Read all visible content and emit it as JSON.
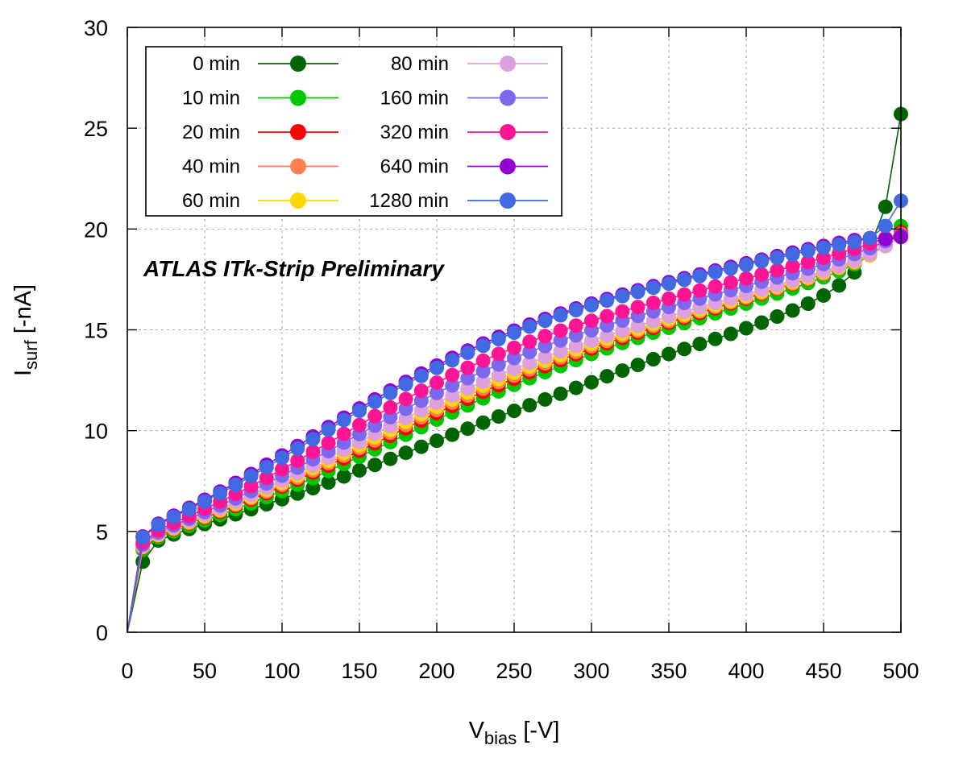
{
  "chart_data": {
    "type": "line",
    "title": "",
    "xlabel": {
      "main": "V",
      "sub": "bias",
      "unit": " [-V]"
    },
    "ylabel": {
      "main": "I",
      "sub": "surf",
      "unit": " [-nA]"
    },
    "xlim": [
      0,
      500
    ],
    "ylim": [
      0,
      30
    ],
    "xticks": [
      "0",
      "50",
      "100",
      "150",
      "200",
      "250",
      "300",
      "350",
      "400",
      "450",
      "500"
    ],
    "yticks": [
      "0",
      "5",
      "10",
      "15",
      "20",
      "25",
      "30"
    ],
    "grid": true,
    "legend_position": "top-left",
    "annotation": {
      "bold": "ATLAS",
      "rest": " ITk-Strip Preliminary"
    },
    "x": [
      0,
      10,
      20,
      30,
      40,
      50,
      60,
      70,
      80,
      90,
      100,
      110,
      120,
      130,
      140,
      150,
      160,
      170,
      180,
      190,
      200,
      210,
      220,
      230,
      240,
      250,
      260,
      270,
      280,
      290,
      300,
      310,
      320,
      330,
      340,
      350,
      360,
      370,
      380,
      390,
      400,
      410,
      420,
      430,
      440,
      450,
      460,
      470,
      480,
      490,
      500
    ],
    "series": [
      {
        "name": "0 min",
        "color": "#006400",
        "values": [
          0,
          3.5,
          4.55,
          4.85,
          5.12,
          5.37,
          5.6,
          5.85,
          6.1,
          6.35,
          6.6,
          6.88,
          7.15,
          7.43,
          7.73,
          8.03,
          8.3,
          8.6,
          8.9,
          9.2,
          9.5,
          9.8,
          10.1,
          10.4,
          10.7,
          10.98,
          11.26,
          11.55,
          11.83,
          12.12,
          12.4,
          12.7,
          12.98,
          13.26,
          13.54,
          13.8,
          14.05,
          14.3,
          14.55,
          14.8,
          15.08,
          15.36,
          15.66,
          15.96,
          16.3,
          16.7,
          17.2,
          17.85,
          19.1,
          21.1,
          25.7
        ]
      },
      {
        "name": "10 min",
        "color": "#00c800",
        "values": [
          0,
          4.1,
          4.7,
          5.0,
          5.28,
          5.55,
          5.82,
          6.1,
          6.4,
          6.7,
          7.0,
          7.32,
          7.65,
          8.0,
          8.35,
          8.7,
          9.07,
          9.43,
          9.8,
          10.17,
          10.55,
          10.9,
          11.25,
          11.6,
          11.95,
          12.27,
          12.6,
          12.9,
          13.2,
          13.5,
          13.8,
          14.08,
          14.35,
          14.6,
          14.86,
          15.1,
          15.34,
          15.58,
          15.82,
          16.06,
          16.3,
          16.55,
          16.8,
          17.05,
          17.32,
          17.6,
          17.9,
          18.25,
          18.7,
          19.2,
          20.15
        ]
      },
      {
        "name": "20 min",
        "color": "#ff0000",
        "values": [
          0,
          4.2,
          4.78,
          5.1,
          5.4,
          5.68,
          5.97,
          6.27,
          6.58,
          6.9,
          7.23,
          7.57,
          7.92,
          8.27,
          8.63,
          9.0,
          9.37,
          9.75,
          10.12,
          10.5,
          10.87,
          11.23,
          11.58,
          11.93,
          12.26,
          12.58,
          12.9,
          13.2,
          13.5,
          13.79,
          14.07,
          14.34,
          14.6,
          14.86,
          15.1,
          15.35,
          15.59,
          15.83,
          16.07,
          16.31,
          16.55,
          16.79,
          17.03,
          17.27,
          17.52,
          17.78,
          18.05,
          18.35,
          18.75,
          19.2,
          19.85
        ]
      },
      {
        "name": "40 min",
        "color": "#ff7f50",
        "values": [
          0,
          4.22,
          4.8,
          5.13,
          5.43,
          5.72,
          6.02,
          6.33,
          6.65,
          6.98,
          7.32,
          7.67,
          8.03,
          8.39,
          8.76,
          9.14,
          9.52,
          9.9,
          10.28,
          10.66,
          11.03,
          11.39,
          11.74,
          12.08,
          12.41,
          12.73,
          13.04,
          13.34,
          13.63,
          13.91,
          14.19,
          14.45,
          14.71,
          14.96,
          15.2,
          15.44,
          15.68,
          15.91,
          16.14,
          16.37,
          16.6,
          16.83,
          17.06,
          17.3,
          17.54,
          17.79,
          18.05,
          18.33,
          18.7,
          19.15,
          19.75
        ]
      },
      {
        "name": "60 min",
        "color": "#ffd700",
        "values": [
          0,
          4.24,
          4.83,
          5.16,
          5.47,
          5.77,
          6.07,
          6.39,
          6.72,
          7.06,
          7.41,
          7.77,
          8.14,
          8.51,
          8.89,
          9.27,
          9.66,
          10.04,
          10.43,
          10.81,
          11.18,
          11.54,
          11.89,
          12.23,
          12.55,
          12.87,
          13.17,
          13.47,
          13.75,
          14.03,
          14.3,
          14.56,
          14.81,
          15.05,
          15.29,
          15.53,
          15.76,
          15.99,
          16.22,
          16.44,
          16.67,
          16.9,
          17.13,
          17.36,
          17.59,
          17.84,
          18.1,
          18.38,
          18.72,
          19.15,
          19.7
        ]
      },
      {
        "name": "80 min",
        "color": "#dda0dd",
        "values": [
          0,
          4.26,
          4.86,
          5.2,
          5.52,
          5.83,
          6.14,
          6.47,
          6.81,
          7.16,
          7.52,
          7.89,
          8.27,
          8.66,
          9.05,
          9.44,
          9.84,
          10.23,
          10.62,
          11.0,
          11.38,
          11.74,
          12.09,
          12.43,
          12.75,
          13.06,
          13.36,
          13.65,
          13.93,
          14.2,
          14.46,
          14.71,
          14.96,
          15.2,
          15.43,
          15.66,
          15.89,
          16.11,
          16.33,
          16.55,
          16.77,
          16.99,
          17.21,
          17.44,
          17.67,
          17.91,
          18.16,
          18.43,
          18.75,
          19.15,
          19.65
        ]
      },
      {
        "name": "160 min",
        "color": "#7b68ee",
        "values": [
          0,
          4.35,
          4.95,
          5.3,
          5.63,
          5.96,
          6.29,
          6.64,
          7.0,
          7.38,
          7.77,
          8.17,
          8.58,
          8.99,
          9.41,
          9.83,
          10.25,
          10.67,
          11.08,
          11.48,
          11.87,
          12.24,
          12.6,
          12.95,
          13.28,
          13.6,
          13.9,
          14.19,
          14.47,
          14.73,
          14.98,
          15.22,
          15.46,
          15.69,
          15.91,
          16.13,
          16.34,
          16.55,
          16.76,
          16.97,
          17.18,
          17.39,
          17.6,
          17.81,
          18.03,
          18.26,
          18.5,
          18.76,
          19.05,
          19.4,
          19.7
        ]
      },
      {
        "name": "320 min",
        "color": "#ff1493",
        "values": [
          0,
          4.45,
          5.05,
          5.42,
          5.77,
          6.12,
          6.48,
          6.86,
          7.25,
          7.66,
          8.08,
          8.51,
          8.95,
          9.39,
          9.84,
          10.28,
          10.72,
          11.15,
          11.57,
          11.98,
          12.38,
          12.76,
          13.12,
          13.47,
          13.8,
          14.11,
          14.41,
          14.69,
          14.96,
          15.21,
          15.45,
          15.68,
          15.91,
          16.13,
          16.34,
          16.55,
          16.75,
          16.95,
          17.15,
          17.35,
          17.55,
          17.75,
          17.95,
          18.15,
          18.36,
          18.57,
          18.79,
          19.02,
          19.28,
          19.55,
          19.65
        ]
      },
      {
        "name": "640 min",
        "color": "#9400d3",
        "values": [
          0,
          4.75,
          5.38,
          5.78,
          6.17,
          6.57,
          6.98,
          7.41,
          7.85,
          8.31,
          8.77,
          9.24,
          9.71,
          10.18,
          10.64,
          11.1,
          11.55,
          11.99,
          12.42,
          12.83,
          13.23,
          13.61,
          13.97,
          14.32,
          14.65,
          14.96,
          15.26,
          15.54,
          15.81,
          16.06,
          16.3,
          16.53,
          16.75,
          16.96,
          17.17,
          17.37,
          17.56,
          17.75,
          17.94,
          18.12,
          18.3,
          18.48,
          18.66,
          18.83,
          19.0,
          19.16,
          19.31,
          19.45,
          19.55,
          19.5,
          19.6
        ]
      },
      {
        "name": "1280 min",
        "color": "#4169e1",
        "values": [
          0,
          4.7,
          5.33,
          5.72,
          6.1,
          6.49,
          6.89,
          7.31,
          7.74,
          8.19,
          8.65,
          9.11,
          9.58,
          10.05,
          10.52,
          10.98,
          11.43,
          11.87,
          12.3,
          12.71,
          13.11,
          13.49,
          13.86,
          14.21,
          14.54,
          14.86,
          15.16,
          15.45,
          15.72,
          15.98,
          16.22,
          16.45,
          16.67,
          16.88,
          17.09,
          17.29,
          17.48,
          17.67,
          17.86,
          18.04,
          18.22,
          18.4,
          18.57,
          18.74,
          18.91,
          19.07,
          19.22,
          19.36,
          19.55,
          20.15,
          21.4
        ]
      }
    ]
  }
}
